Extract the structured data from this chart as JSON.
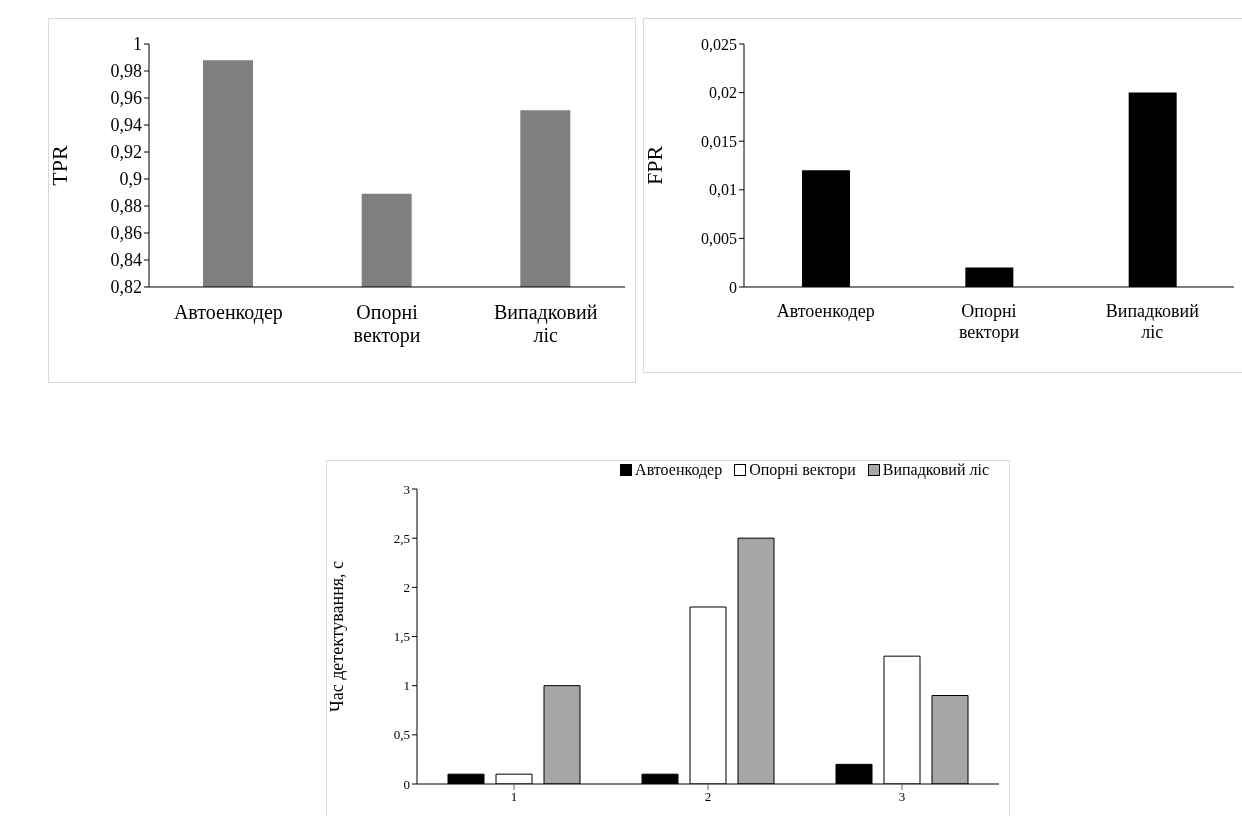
{
  "chart_data": [
    {
      "type": "bar",
      "ylabel": "TPR",
      "categories": [
        "Автоенкодер",
        "Опорні вектори",
        "Випадковий ліс"
      ],
      "values": [
        0.988,
        0.889,
        0.951
      ],
      "color": "#7f7f7f",
      "ylim": [
        0.82,
        1
      ],
      "yticks": [
        {
          "value": 0.82,
          "label": "0,82"
        },
        {
          "value": 0.84,
          "label": "0,84"
        },
        {
          "value": 0.86,
          "label": "0,86"
        },
        {
          "value": 0.88,
          "label": "0,88"
        },
        {
          "value": 0.9,
          "label": "0,9"
        },
        {
          "value": 0.92,
          "label": "0,92"
        },
        {
          "value": 0.94,
          "label": "0,94"
        },
        {
          "value": 0.96,
          "label": "0,96"
        },
        {
          "value": 0.98,
          "label": "0,98"
        },
        {
          "value": 1,
          "label": "1"
        }
      ],
      "grid": false,
      "legend": false
    },
    {
      "type": "bar",
      "ylabel": "FPR",
      "categories": [
        "Автоенкодер",
        "Опорні вектори",
        "Випадковий ліс"
      ],
      "values": [
        0.012,
        0.002,
        0.02
      ],
      "color": "#000000",
      "ylim": [
        0,
        0.025
      ],
      "yticks": [
        0,
        {
          "value": 0.005,
          "label": "0,005"
        },
        {
          "value": 0.01,
          "label": "0,01"
        },
        {
          "value": 0.015,
          "label": "0,015"
        },
        {
          "value": 0.02,
          "label": "0,02"
        },
        {
          "value": 0.025,
          "label": "0,025"
        }
      ],
      "grid": false,
      "legend": false
    },
    {
      "type": "bar",
      "ylabel": "Час детектування, с",
      "categories": [
        "1",
        "2",
        "3"
      ],
      "series": [
        {
          "name": "Автоенкодер",
          "color": "#000000",
          "values": [
            0.1,
            0.1,
            0.2
          ]
        },
        {
          "name": "Опорні вектори",
          "color": "#ffffff",
          "values": [
            0.1,
            1.8,
            1.3
          ]
        },
        {
          "name": "Випадковий ліс",
          "color": "#a6a6a6",
          "values": [
            1.0,
            2.5,
            0.9
          ]
        }
      ],
      "ylim": [
        0,
        3
      ],
      "yticks": [
        0,
        {
          "value": 0.5,
          "label": "0,5"
        },
        1,
        {
          "value": 1.5,
          "label": "1,5"
        },
        2,
        {
          "value": 2.5,
          "label": "2,5"
        },
        3
      ],
      "grid": false,
      "legend": "top right"
    }
  ]
}
